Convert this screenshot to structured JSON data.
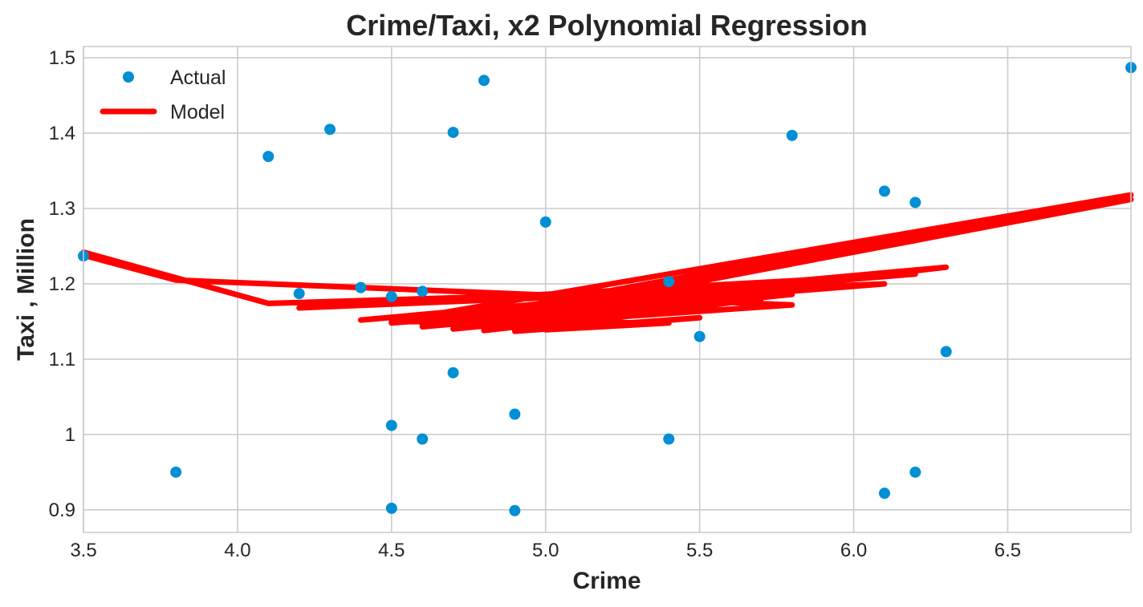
{
  "chart_data": {
    "type": "scatter",
    "title": "Crime/Taxi, x2 Polynomial Regression",
    "xlabel": "Crime",
    "ylabel": "Taxi , Million",
    "xlim": [
      3.5,
      6.9
    ],
    "ylim": [
      0.87,
      1.515
    ],
    "x_ticks": [
      3.5,
      4.0,
      4.5,
      5.0,
      5.5,
      6.0,
      6.5
    ],
    "x_tick_labels": [
      "3.5",
      "4.0",
      "4.5",
      "5.0",
      "5.5",
      "6.0",
      "6.5"
    ],
    "y_ticks": [
      0.9,
      1.0,
      1.1,
      1.2,
      1.3,
      1.4,
      1.5
    ],
    "y_tick_labels": [
      "0.9",
      "1",
      "1.1",
      "1.2",
      "1.3",
      "1.4",
      "1.5"
    ],
    "grid": true,
    "legend": "top-left",
    "series": [
      {
        "name": "Actual",
        "kind": "scatter",
        "color": "#008fd5",
        "points": [
          [
            3.5,
            1.237
          ],
          [
            3.8,
            0.95
          ],
          [
            4.1,
            1.369
          ],
          [
            4.2,
            1.187
          ],
          [
            4.3,
            1.405
          ],
          [
            4.4,
            1.195
          ],
          [
            4.5,
            1.183
          ],
          [
            4.5,
            1.012
          ],
          [
            4.5,
            0.902
          ],
          [
            4.6,
            1.19
          ],
          [
            4.6,
            0.994
          ],
          [
            4.7,
            1.401
          ],
          [
            4.7,
            1.082
          ],
          [
            4.8,
            1.47
          ],
          [
            4.9,
            1.027
          ],
          [
            4.9,
            0.899
          ],
          [
            5.0,
            1.282
          ],
          [
            5.4,
            1.203
          ],
          [
            5.4,
            0.994
          ],
          [
            5.5,
            1.13
          ],
          [
            5.8,
            1.397
          ],
          [
            6.1,
            1.323
          ],
          [
            6.1,
            0.922
          ],
          [
            6.2,
            1.308
          ],
          [
            6.2,
            0.95
          ],
          [
            6.3,
            1.11
          ],
          [
            6.9,
            1.487
          ]
        ]
      },
      {
        "name": "Model",
        "kind": "line",
        "color": "#ff0000",
        "points": [
          [
            3.5,
            1.242
          ],
          [
            4.1,
            1.174
          ],
          [
            5.8,
            1.195
          ],
          [
            4.5,
            1.148
          ],
          [
            6.1,
            1.2
          ],
          [
            4.2,
            1.168
          ],
          [
            6.2,
            1.213
          ],
          [
            4.4,
            1.152
          ],
          [
            6.3,
            1.222
          ],
          [
            4.6,
            1.143
          ],
          [
            5.8,
            1.186
          ],
          [
            4.7,
            1.14
          ],
          [
            5.7,
            1.18
          ],
          [
            4.8,
            1.138
          ],
          [
            5.6,
            1.175
          ],
          [
            4.9,
            1.137
          ],
          [
            5.5,
            1.155
          ],
          [
            5.0,
            1.139
          ],
          [
            5.4,
            1.148
          ],
          [
            4.5,
            1.15
          ],
          [
            6.9,
            1.318
          ],
          [
            4.6,
            1.145
          ],
          [
            6.9,
            1.312
          ],
          [
            4.7,
            1.141
          ],
          [
            5.8,
            1.172
          ],
          [
            3.8,
            1.205
          ],
          [
            3.5,
            1.238
          ]
        ]
      }
    ]
  }
}
